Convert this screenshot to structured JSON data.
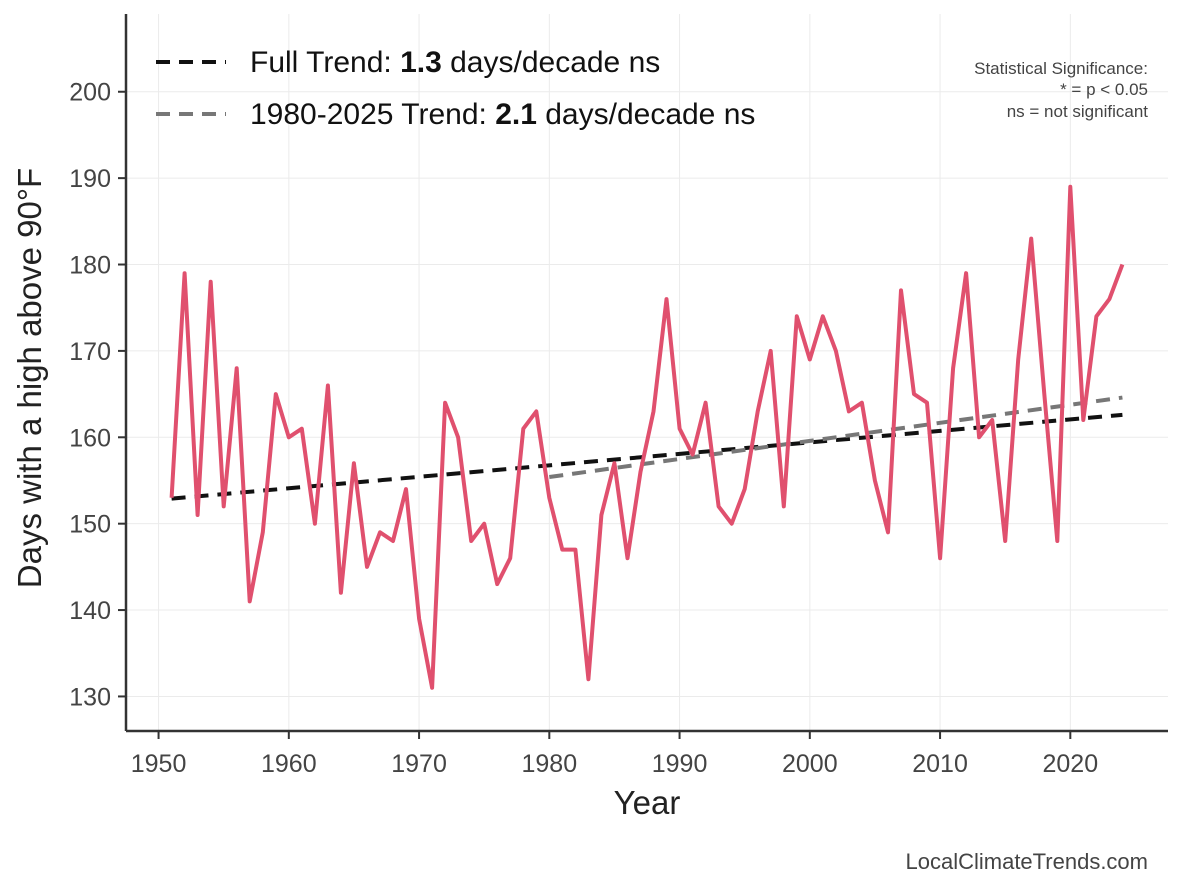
{
  "chart_data": {
    "type": "line",
    "title": "",
    "xlabel": "Year",
    "ylabel": "Days with a high above 90°F",
    "xlim": [
      1947.5,
      2027.5
    ],
    "ylim": [
      126,
      209
    ],
    "xticks": [
      1950,
      1960,
      1970,
      1980,
      1990,
      2000,
      2010,
      2020
    ],
    "yticks": [
      130,
      140,
      150,
      160,
      170,
      180,
      190,
      200
    ],
    "grid": true,
    "legend_position": "top-left",
    "colors": {
      "series": "#e0506e",
      "full_trend": "#111111",
      "recent_trend": "#777777",
      "axis": "#333333",
      "grid": "#ebebeb"
    },
    "series": [
      {
        "x": [
          1951,
          1952,
          1953,
          1954,
          1955,
          1956,
          1957,
          1958,
          1959,
          1960,
          1961,
          1962,
          1963,
          1964,
          1965,
          1966,
          1967,
          1968,
          1969,
          1970,
          1971,
          1972,
          1973,
          1974,
          1975,
          1976,
          1977,
          1978,
          1979,
          1980,
          1981,
          1982,
          1983,
          1984,
          1985,
          1986,
          1987,
          1988,
          1989,
          1990,
          1991,
          1992,
          1993,
          1994,
          1995,
          1996,
          1997,
          1998,
          1999,
          2000,
          2001,
          2002,
          2003,
          2004,
          2005,
          2006,
          2007,
          2008,
          2009,
          2010,
          2011,
          2012,
          2013,
          2014,
          2015,
          2016,
          2017,
          2018,
          2019,
          2020,
          2021,
          2022,
          2023,
          2024
        ],
        "values": [
          153,
          179,
          151,
          178,
          152,
          168,
          141,
          149,
          165,
          160,
          161,
          150,
          166,
          142,
          157,
          145,
          149,
          148,
          154,
          139,
          131,
          164,
          160,
          148,
          150,
          143,
          146,
          161,
          163,
          153,
          147,
          147,
          132,
          151,
          157,
          146,
          156,
          163,
          176,
          161,
          158,
          164,
          152,
          150,
          154,
          163,
          170,
          152,
          174,
          169,
          174,
          170,
          163,
          164,
          155,
          149,
          177,
          165,
          164,
          146,
          168,
          179,
          160,
          162,
          148,
          169,
          183,
          165,
          148,
          189,
          162,
          174,
          176,
          180
        ]
      }
    ],
    "trends": [
      {
        "x": [
          1951,
          2024
        ],
        "values": [
          152.9,
          162.6
        ],
        "label_prefix": "Full Trend: ",
        "label_value": "1.3",
        "label_suffix": " days/decade ns"
      },
      {
        "x": [
          1980,
          2024
        ],
        "values": [
          155.4,
          164.6
        ],
        "label_prefix": "1980-2025 Trend: ",
        "label_value": "2.1",
        "label_suffix": " days/decade ns"
      }
    ],
    "annotation": {
      "lines": [
        "Statistical Significance:",
        "* = p < 0.05",
        "ns = not significant"
      ]
    },
    "footer": "LocalClimateTrends.com"
  }
}
